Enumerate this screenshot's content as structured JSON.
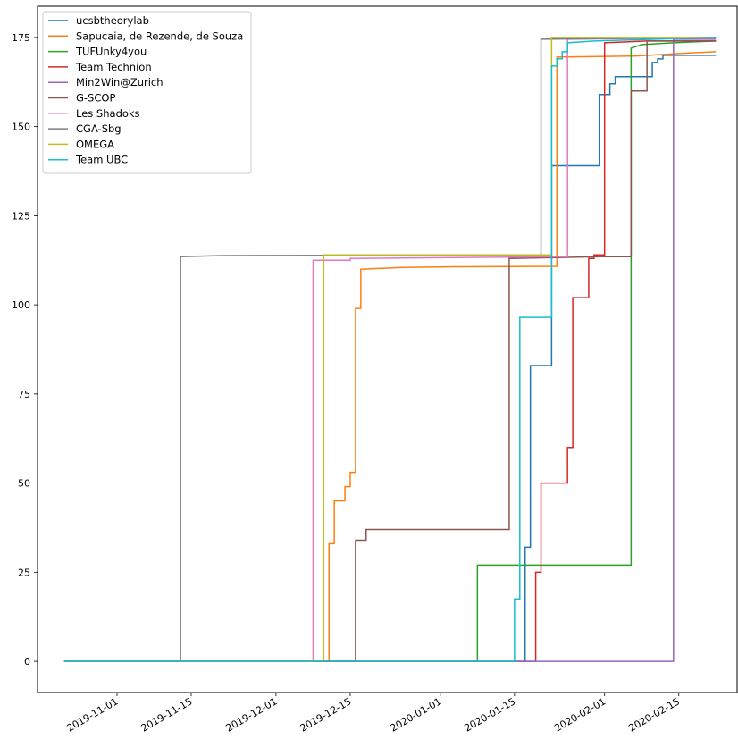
{
  "chart_data": {
    "type": "line",
    "step": true,
    "title": "",
    "xlabel": "",
    "ylabel": "",
    "x_is_date": true,
    "xlim": [
      "2019-10-17",
      "2020-02-26"
    ],
    "ylim": [
      -8.75,
      183.75
    ],
    "x_ticks": [
      "2019-11-01",
      "2019-11-15",
      "2019-12-01",
      "2019-12-15",
      "2020-01-01",
      "2020-01-15",
      "2020-02-01",
      "2020-02-15"
    ],
    "y_ticks": [
      0,
      25,
      50,
      75,
      100,
      125,
      150,
      175
    ],
    "grid": false,
    "legend_position": "top-left",
    "series": [
      {
        "name": "ucsbtheorylab",
        "color": "#1f77b4",
        "points": [
          [
            "2019-10-22",
            0
          ],
          [
            "2020-01-17",
            0
          ],
          [
            "2020-01-17",
            32
          ],
          [
            "2020-01-18",
            32
          ],
          [
            "2020-01-18",
            83
          ],
          [
            "2020-01-22",
            83
          ],
          [
            "2020-01-22",
            139
          ],
          [
            "2020-01-31",
            139
          ],
          [
            "2020-01-31",
            159
          ],
          [
            "2020-02-02",
            159
          ],
          [
            "2020-02-02",
            162
          ],
          [
            "2020-02-03",
            162
          ],
          [
            "2020-02-03",
            164
          ],
          [
            "2020-02-10",
            164
          ],
          [
            "2020-02-10",
            168
          ],
          [
            "2020-02-11",
            168
          ],
          [
            "2020-02-11",
            169
          ],
          [
            "2020-02-12",
            169
          ],
          [
            "2020-02-12",
            170
          ],
          [
            "2020-02-22",
            170
          ]
        ]
      },
      {
        "name": "Sapucaia, de Rezende, de Souza",
        "color": "#ff7f0e",
        "points": [
          [
            "2019-10-22",
            0
          ],
          [
            "2019-12-11",
            0
          ],
          [
            "2019-12-11",
            33
          ],
          [
            "2019-12-12",
            33
          ],
          [
            "2019-12-12",
            45
          ],
          [
            "2019-12-14",
            45
          ],
          [
            "2019-12-14",
            49
          ],
          [
            "2019-12-15",
            49
          ],
          [
            "2019-12-15",
            53
          ],
          [
            "2019-12-16",
            53
          ],
          [
            "2019-12-16",
            99
          ],
          [
            "2019-12-17",
            99
          ],
          [
            "2019-12-17",
            110
          ],
          [
            "2019-12-25",
            110.5
          ],
          [
            "2020-01-05",
            110.7
          ],
          [
            "2020-01-23",
            110.8
          ],
          [
            "2020-01-23",
            169.5
          ],
          [
            "2020-02-07",
            169.8
          ],
          [
            "2020-02-15",
            170.5
          ],
          [
            "2020-02-22",
            171
          ]
        ]
      },
      {
        "name": "TUFUnky4you",
        "color": "#2ca02c",
        "points": [
          [
            "2019-10-22",
            0
          ],
          [
            "2020-01-08",
            0
          ],
          [
            "2020-01-08",
            27
          ],
          [
            "2020-02-06",
            27
          ],
          [
            "2020-02-06",
            172
          ],
          [
            "2020-02-08",
            173
          ],
          [
            "2020-02-14",
            173.5
          ],
          [
            "2020-02-22",
            174
          ]
        ]
      },
      {
        "name": "Team Technion",
        "color": "#d62728",
        "points": [
          [
            "2019-10-22",
            0
          ],
          [
            "2020-01-19",
            0
          ],
          [
            "2020-01-19",
            25
          ],
          [
            "2020-01-20",
            25
          ],
          [
            "2020-01-20",
            50
          ],
          [
            "2020-01-25",
            50
          ],
          [
            "2020-01-25",
            60
          ],
          [
            "2020-01-26",
            60
          ],
          [
            "2020-01-26",
            102
          ],
          [
            "2020-01-29",
            102
          ],
          [
            "2020-01-29",
            113
          ],
          [
            "2020-01-30",
            113
          ],
          [
            "2020-01-30",
            114
          ],
          [
            "2020-02-01",
            114
          ],
          [
            "2020-02-01",
            173.5
          ],
          [
            "2020-02-09",
            174
          ],
          [
            "2020-02-22",
            174
          ]
        ]
      },
      {
        "name": "Min2Win@Zurich",
        "color": "#9467bd",
        "points": [
          [
            "2019-10-22",
            0
          ],
          [
            "2020-02-14",
            0
          ],
          [
            "2020-02-14",
            174.5
          ],
          [
            "2020-02-22",
            174.5
          ]
        ]
      },
      {
        "name": "G-SCOP",
        "color": "#8c564b",
        "points": [
          [
            "2019-10-22",
            0
          ],
          [
            "2019-12-16",
            0
          ],
          [
            "2019-12-16",
            34
          ],
          [
            "2019-12-18",
            34
          ],
          [
            "2019-12-18",
            37
          ],
          [
            "2020-01-14",
            37
          ],
          [
            "2020-01-14",
            113
          ],
          [
            "2020-01-31",
            113.5
          ],
          [
            "2020-02-06",
            113.5
          ],
          [
            "2020-02-06",
            160
          ],
          [
            "2020-02-09",
            160
          ],
          [
            "2020-02-09",
            174
          ],
          [
            "2020-02-22",
            174
          ]
        ]
      },
      {
        "name": "Les Shadoks",
        "color": "#e377c2",
        "points": [
          [
            "2019-10-22",
            0
          ],
          [
            "2019-12-08",
            0
          ],
          [
            "2019-12-08",
            112.5
          ],
          [
            "2019-12-15",
            112.5
          ],
          [
            "2019-12-15",
            113
          ],
          [
            "2020-01-24",
            113.5
          ],
          [
            "2020-01-25",
            113.5
          ],
          [
            "2020-01-25",
            174.5
          ],
          [
            "2020-02-22",
            175
          ]
        ]
      },
      {
        "name": "CGA-Sbg",
        "color": "#7f7f7f",
        "points": [
          [
            "2019-10-22",
            0
          ],
          [
            "2019-11-13",
            0
          ],
          [
            "2019-11-13",
            113.5
          ],
          [
            "2019-11-20",
            113.8
          ],
          [
            "2020-01-20",
            114
          ],
          [
            "2020-01-20",
            174.5
          ],
          [
            "2020-02-22",
            175
          ]
        ]
      },
      {
        "name": "OMEGA",
        "color": "#bcbd22",
        "points": [
          [
            "2019-10-22",
            0
          ],
          [
            "2019-12-10",
            0
          ],
          [
            "2019-12-10",
            114
          ],
          [
            "2020-01-22",
            114
          ],
          [
            "2020-01-22",
            175
          ],
          [
            "2020-02-22",
            175
          ]
        ]
      },
      {
        "name": "Team UBC",
        "color": "#17becf",
        "points": [
          [
            "2019-10-22",
            0
          ],
          [
            "2020-01-15",
            0
          ],
          [
            "2020-01-15",
            17.5
          ],
          [
            "2020-01-16",
            17.5
          ],
          [
            "2020-01-16",
            96.5
          ],
          [
            "2020-01-22",
            96.5
          ],
          [
            "2020-01-22",
            167
          ],
          [
            "2020-01-23",
            167
          ],
          [
            "2020-01-23",
            169
          ],
          [
            "2020-01-24",
            169
          ],
          [
            "2020-01-24",
            171
          ],
          [
            "2020-01-25",
            171
          ],
          [
            "2020-01-25",
            173.5
          ],
          [
            "2020-01-30",
            174
          ],
          [
            "2020-02-22",
            175
          ]
        ]
      }
    ]
  }
}
